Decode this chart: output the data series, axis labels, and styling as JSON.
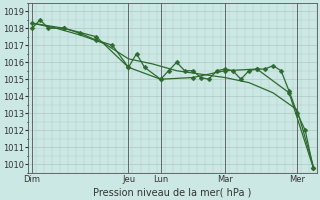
{
  "bg_color": "#cce8e4",
  "grid_color": "#b0c8c4",
  "line_color": "#2d6a2d",
  "marker_color": "#2d6a2d",
  "xlabel": "Pression niveau de la mer( hPa )",
  "ylim": [
    1009.5,
    1019.5
  ],
  "yticks": [
    1010,
    1011,
    1012,
    1013,
    1014,
    1015,
    1016,
    1017,
    1018,
    1019
  ],
  "xlim": [
    0,
    36
  ],
  "day_labels": [
    "Dim",
    "Jeu",
    "Lun",
    "Mar",
    "Mer"
  ],
  "day_positions": [
    0.5,
    12.5,
    16.5,
    24.5,
    33.5
  ],
  "vline_positions": [
    0.5,
    12.5,
    16.5,
    24.5,
    33.5
  ],
  "series1_x": [
    0.5,
    1.5,
    2.5,
    4.5,
    6.5,
    8.5,
    10.5,
    12.5,
    13.5,
    14.5,
    16.5,
    17.5,
    18.5,
    19.5,
    20.5,
    21.5,
    22.5,
    23.5,
    24.5,
    25.5,
    26.5,
    27.5,
    28.5,
    29.5,
    30.5,
    31.5,
    32.5,
    33.5,
    34.5,
    35.5
  ],
  "series1_y": [
    1018.0,
    1018.5,
    1018.0,
    1018.0,
    1017.7,
    1017.3,
    1017.0,
    1015.7,
    1016.5,
    1015.7,
    1015.0,
    1015.5,
    1016.0,
    1015.5,
    1015.5,
    1015.1,
    1015.0,
    1015.5,
    1015.6,
    1015.5,
    1015.0,
    1015.5,
    1015.6,
    1015.6,
    1015.8,
    1015.5,
    1014.3,
    1013.0,
    1012.0,
    1009.8
  ],
  "series2_x": [
    0.5,
    3.5,
    6.5,
    9.5,
    12.5,
    15.5,
    18.5,
    21.5,
    24.5,
    27.5,
    30.5,
    33.5,
    35.5
  ],
  "series2_y": [
    1018.3,
    1018.0,
    1017.6,
    1017.1,
    1016.2,
    1015.9,
    1015.5,
    1015.3,
    1015.1,
    1014.8,
    1014.2,
    1013.2,
    1009.9
  ],
  "series3_x": [
    0.5,
    4.5,
    8.5,
    12.5,
    16.5,
    20.5,
    24.5,
    28.5,
    32.5,
    35.5
  ],
  "series3_y": [
    1018.3,
    1018.0,
    1017.5,
    1015.7,
    1015.0,
    1015.1,
    1015.5,
    1015.6,
    1014.2,
    1009.8
  ]
}
